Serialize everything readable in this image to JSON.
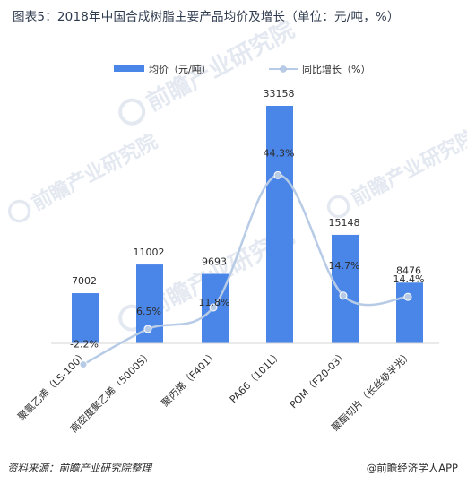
{
  "title": "图表5：2018年中国合成树脂主要产品均价及增长（单位：元/吨，%）",
  "source": "资料来源：前瞻产业研究院整理",
  "brand": "@前瞻经济学人APP",
  "watermark": "前瞻产业研究院",
  "colors": {
    "bar": "#4a86e8",
    "line": "#b7cbe6",
    "marker": "#b7cbe6",
    "text": "#2c2c2c"
  },
  "chart_data": {
    "type": "bar",
    "categories": [
      "聚氯乙烯（LS-100）",
      "高密度聚乙烯（5000S）",
      "聚丙烯（F401）",
      "PA66（101L）",
      "POM（F20-03）",
      "聚酯切片（长丝级半光）"
    ],
    "series": [
      {
        "name": "均价（元/吨）",
        "type": "bar",
        "axis": "left",
        "values": [
          7002,
          11002,
          9693,
          33158,
          15148,
          8476
        ]
      },
      {
        "name": "同比增长（%）",
        "type": "line",
        "axis": "right",
        "values": [
          -2.2,
          6.5,
          11.8,
          44.3,
          14.7,
          14.4
        ]
      }
    ],
    "bar_labels": [
      "7002",
      "11002",
      "9693",
      "33158",
      "15148",
      "8476"
    ],
    "line_labels": [
      "-2.2%",
      "6.5%",
      "11.8%",
      "44.3%",
      "14.7%",
      "14.4%"
    ],
    "legend_position": "top",
    "grid": false,
    "ylim_left": [
      0,
      33158
    ],
    "ylim_right": [
      -10,
      60
    ]
  }
}
